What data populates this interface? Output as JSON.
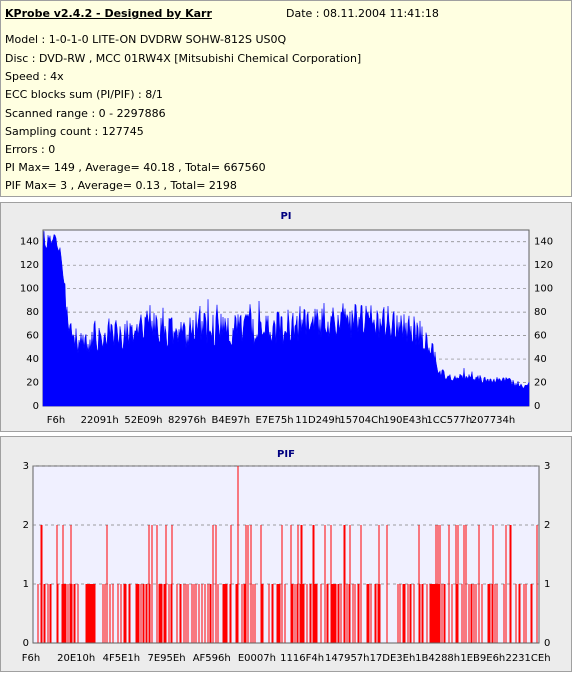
{
  "header": {
    "app_title": "KProbe v2.4.2 - Designed by Karr",
    "date": "Date : 08.11.2004 11:41:18",
    "lines": [
      "Model : 1-0-1-0 LITE-ON DVDRW SOHW-812S  US0Q",
      "Disc : DVD-RW , MCC 01RW4X   [Mitsubishi Chemical Corporation]",
      "Speed : 4x",
      "ECC blocks sum (PI/PIF) : 8/1",
      "Scanned range : 0 - 2297886",
      "Sampling count : 127745",
      "Errors : 0",
      "PI Max= 149 , Average= 40.18 , Total= 667560",
      "PIF Max= 3 , Average= 0.13 , Total= 2198"
    ]
  },
  "colors": {
    "pi": "#0000ff",
    "pif": "#ff0000",
    "plot_bg": "#f0f0ff",
    "grid": "#808080",
    "title": "#000080",
    "panel": "#ececec",
    "info_bg": "#ffffe1"
  },
  "chart_data": [
    {
      "type": "area",
      "title": "PI",
      "ylim": [
        0,
        150
      ],
      "y_ticks": [
        0,
        20,
        40,
        60,
        80,
        100,
        120,
        140
      ],
      "x_tick_labels": [
        "F6h",
        "22091h",
        "52E09h",
        "82976h",
        "B4E97h",
        "E7E75h",
        "11D249h",
        "15704Ch",
        "190E43h",
        "1CC577h",
        "207734h"
      ],
      "grid": true,
      "x_range": [
        0,
        2297886
      ],
      "max": 149,
      "average": 40.18,
      "profile": [
        [
          0,
          140
        ],
        [
          3,
          145
        ],
        [
          6,
          148
        ],
        [
          9,
          138
        ],
        [
          11,
          115
        ],
        [
          13,
          95
        ],
        [
          15,
          78
        ],
        [
          17,
          70
        ],
        [
          19,
          68
        ],
        [
          25,
          67
        ],
        [
          32,
          74
        ],
        [
          38,
          77
        ],
        [
          45,
          74
        ],
        [
          52,
          76
        ],
        [
          58,
          79
        ],
        [
          60,
          82
        ],
        [
          62,
          80
        ],
        [
          68,
          76
        ],
        [
          75,
          75
        ],
        [
          82,
          79
        ],
        [
          85,
          86
        ],
        [
          88,
          82
        ],
        [
          95,
          80
        ],
        [
          100,
          79
        ],
        [
          105,
          80
        ],
        [
          110,
          79
        ],
        [
          115,
          80
        ],
        [
          120,
          81
        ],
        [
          125,
          80
        ],
        [
          130,
          81
        ],
        [
          135,
          85
        ],
        [
          140,
          86
        ],
        [
          145,
          87
        ],
        [
          150,
          88
        ],
        [
          155,
          88
        ],
        [
          160,
          90
        ],
        [
          165,
          88
        ],
        [
          170,
          88
        ],
        [
          175,
          87
        ],
        [
          180,
          86
        ],
        [
          190,
          85
        ],
        [
          195,
          82
        ],
        [
          200,
          79
        ],
        [
          204,
          76
        ],
        [
          208,
          70
        ],
        [
          212,
          55
        ],
        [
          215,
          32
        ],
        [
          220,
          30
        ],
        [
          230,
          29
        ],
        [
          240,
          27
        ],
        [
          250,
          25
        ],
        [
          258,
          22
        ],
        [
          262,
          20
        ],
        [
          264,
          24
        ]
      ]
    },
    {
      "type": "bar",
      "title": "PIF",
      "ylim": [
        0,
        3
      ],
      "y_ticks": [
        0,
        1,
        2,
        3
      ],
      "x_tick_labels": [
        "F6h",
        "20E10h",
        "4F5E1h",
        "7E95Eh",
        "AF596h",
        "E0007h",
        "1116F4h",
        "147957h",
        "17DE3Eh",
        "1B4288h",
        "1EB9E6h",
        "2231CEh"
      ],
      "grid": true,
      "x_range": [
        0,
        2297886
      ],
      "max": 3,
      "average": 0.13,
      "peaks": [
        [
          205,
          3
        ]
      ]
    }
  ]
}
